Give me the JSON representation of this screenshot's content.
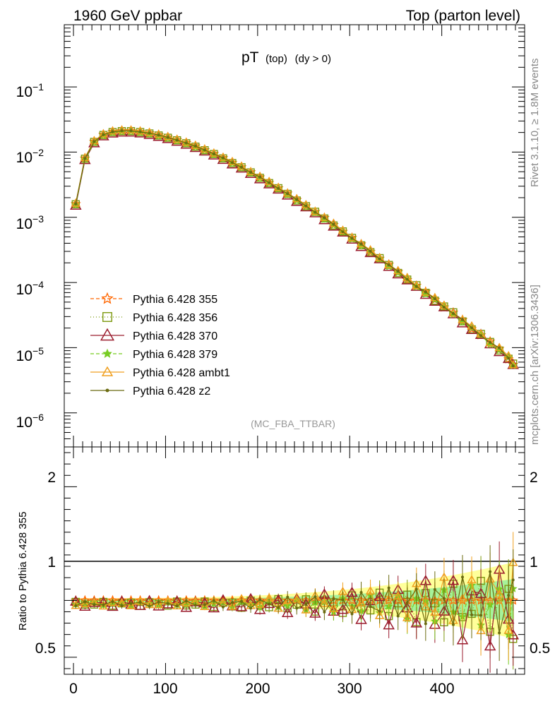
{
  "header": {
    "left": "1960 GeV ppbar",
    "right": "Top (parton level)"
  },
  "side_labels": {
    "rivet": "Rivet 3.1.10, ≥ 1.8M events",
    "mcplots": "mcplots.cern.ch [arXiv:1306.3436]"
  },
  "chart_data": {
    "type": "line",
    "title_main": "pT",
    "title_sub": "(top)",
    "title_cut": "(dy > 0)",
    "watermark": "(MC_FBA_TTBAR)",
    "ratio_ylabel": "Ratio to Pythia 6.428 355",
    "xlim": [
      -10,
      490
    ],
    "ylim_main": [
      3e-07,
      0.9
    ],
    "yscale_main": "log",
    "ylim_ratio": [
      0.35,
      2.35
    ],
    "x_ticks": [
      "0",
      "100",
      "200",
      "300",
      "400"
    ],
    "y_ticks_main": [
      "10",
      "10",
      "10",
      "10",
      "10",
      "10"
    ],
    "y_ticks_main_exp": [
      "−1",
      "−2",
      "−3",
      "−4",
      "−5",
      "−6"
    ],
    "y_ticks_ratio": [
      "2",
      "1",
      "0.5"
    ],
    "legend_position": "lower-left",
    "reference_pt_curve": {
      "x": [
        2.5,
        12.5,
        22.5,
        32.5,
        42.5,
        52.5,
        62.5,
        72.5,
        82.5,
        92.5,
        102.5,
        112.5,
        122.5,
        132.5,
        142.5,
        152.5,
        162.5,
        172.5,
        182.5,
        192.5,
        202.5,
        212.5,
        222.5,
        232.5,
        242.5,
        252.5,
        262.5,
        272.5,
        282.5,
        292.5,
        302.5,
        312.5,
        322.5,
        332.5,
        342.5,
        352.5,
        362.5,
        372.5,
        382.5,
        392.5,
        402.5,
        412.5,
        422.5,
        432.5,
        442.5,
        452.5,
        462.5,
        472.5,
        477.5
      ],
      "y": [
        0.0016,
        0.008,
        0.0145,
        0.0185,
        0.0205,
        0.0212,
        0.0212,
        0.0205,
        0.0195,
        0.0182,
        0.0168,
        0.0153,
        0.0138,
        0.0123,
        0.0108,
        0.0094,
        0.0081,
        0.0069,
        0.0059,
        0.0049,
        0.0041,
        0.0034,
        0.0028,
        0.0023,
        0.00185,
        0.0015,
        0.00121,
        0.00097,
        0.00077,
        0.00061,
        0.00048,
        0.00038,
        0.0003,
        0.000235,
        0.000185,
        0.000145,
        0.000113,
        8.9e-05,
        7e-05,
        5.5e-05,
        4.3e-05,
        3.4e-05,
        2.6e-05,
        2e-05,
        1.6e-05,
        1.2e-05,
        9.5e-06,
        7e-06,
        5.5e-06
      ]
    },
    "series": [
      {
        "name": "Pythia 6.428 355",
        "color": "#ff6600",
        "marker": "star",
        "dash": "5,3",
        "main_scale": 1.0,
        "ratio_amp": 0.0,
        "ratio_off": 0.0,
        "phase": 0.0
      },
      {
        "name": "Pythia 6.428 356",
        "color": "#7e9a10",
        "marker": "square",
        "dash": "1,3",
        "main_scale": 0.99,
        "ratio_amp": 0.07,
        "ratio_off": -0.02,
        "phase": 1.3
      },
      {
        "name": "Pythia 6.428 370",
        "color": "#9b1c2e",
        "marker": "triangle",
        "dash": "",
        "main_scale": 0.95,
        "ratio_amp": 0.1,
        "ratio_off": -0.04,
        "phase": 2.1
      },
      {
        "name": "Pythia 6.428 379",
        "color": "#77cc22",
        "marker": "smallstar",
        "dash": "5,3",
        "main_scale": 0.97,
        "ratio_amp": 0.06,
        "ratio_off": -0.03,
        "phase": 3.4
      },
      {
        "name": "Pythia 6.428 ambt1",
        "color": "#f0a020",
        "marker": "triangle-open",
        "dash": "",
        "main_scale": 1.03,
        "ratio_amp": 0.08,
        "ratio_off": 0.04,
        "phase": 4.0
      },
      {
        "name": "Pythia 6.428 z2",
        "color": "#6b6b10",
        "marker": "dot",
        "dash": "",
        "main_scale": 1.0,
        "ratio_amp": 0.08,
        "ratio_off": 0.01,
        "phase": 5.2
      }
    ],
    "colors": {
      "band_outer": "#ffff88",
      "band_inner": "#88ee99",
      "frame": "#000000"
    }
  }
}
